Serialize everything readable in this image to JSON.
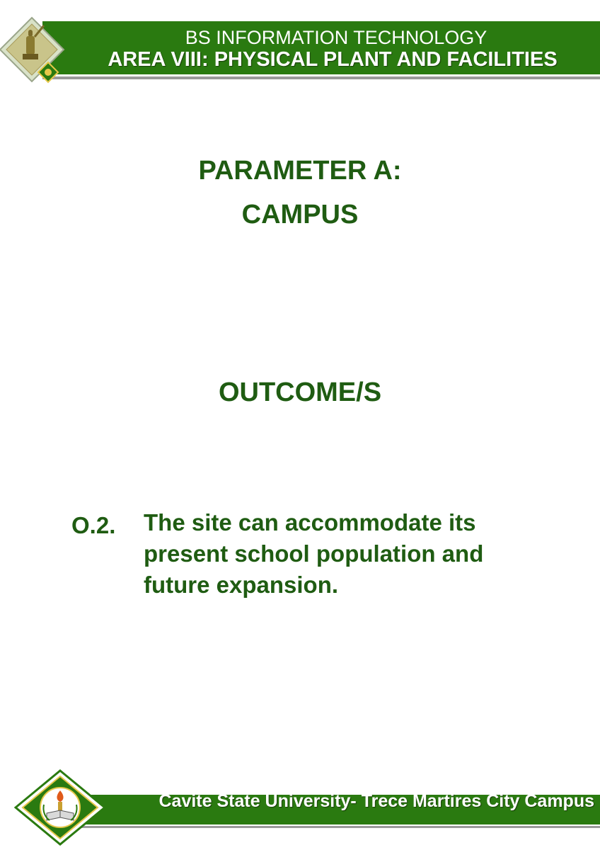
{
  "header": {
    "program": "BS INFORMATION TECHNOLOGY",
    "area": "AREA VIII: PHYSICAL PLANT AND FACILITIES"
  },
  "parameter": {
    "line1": "PARAMETER A:",
    "line2": "CAMPUS"
  },
  "outcome": {
    "heading": "OUTCOME/S",
    "code": "O.2.",
    "lines": [
      "The site can accommodate its",
      "present school population and",
      "future expansion."
    ]
  },
  "footer": {
    "campus": "Cavite State University- Trece Martires City Campus"
  },
  "colors": {
    "band_green": "#2a7a10",
    "text_green": "#1f5c12",
    "rule_gray": "#9a9a9a"
  }
}
